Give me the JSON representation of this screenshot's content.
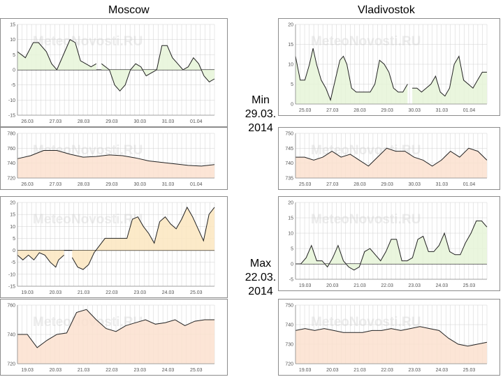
{
  "cities": {
    "left": "Moscow",
    "right": "Vladivostok"
  },
  "periods": {
    "min": {
      "label": "Min",
      "date": "29.03.",
      "year": "2014"
    },
    "max": {
      "label": "Max",
      "date": "22.03.",
      "year": "2014"
    }
  },
  "watermark": "MeteoNovosti.RU",
  "colors": {
    "temp_fill": "#e6f5d8",
    "temp_fill_warm": "#fbe6bf",
    "press_fill": "#fbe1cf",
    "line": "#222222",
    "grid": "#d0d0d0",
    "zero_line": "#000000"
  },
  "chart_data": [
    {
      "id": "moscow-min-temp",
      "type": "area",
      "city": "Moscow",
      "period": "Min",
      "variable": "temperature",
      "ylim": [
        -15,
        15
      ],
      "yticks": [
        "-15",
        "-10",
        "-5",
        "0",
        "5",
        "10",
        "15"
      ],
      "ytick_values": [
        -15,
        -10,
        -5,
        0,
        5,
        10,
        15
      ],
      "xticks": [
        "26.03",
        "27.03",
        "28.03",
        "29.03",
        "30.03",
        "31.03",
        "01.04"
      ],
      "xlim": [
        0,
        7
      ],
      "fill": "temp_fill",
      "series": [
        [
          [
            0,
            6
          ],
          [
            0.3,
            4
          ],
          [
            0.6,
            9
          ],
          [
            0.8,
            9
          ],
          [
            1.1,
            6
          ],
          [
            1.3,
            2
          ],
          [
            1.5,
            0
          ],
          [
            1.8,
            6
          ],
          [
            2.0,
            10
          ],
          [
            2.2,
            9
          ],
          [
            2.4,
            3
          ],
          [
            2.6,
            2
          ],
          [
            2.8,
            1
          ],
          [
            3.0,
            2
          ]
        ],
        [
          [
            3.2,
            2
          ],
          [
            3.5,
            0
          ],
          [
            3.7,
            -5
          ],
          [
            3.9,
            -7
          ],
          [
            4.1,
            -5
          ],
          [
            4.3,
            0
          ],
          [
            4.5,
            2
          ],
          [
            4.7,
            1
          ],
          [
            4.9,
            -2
          ],
          [
            5.1,
            -1
          ],
          [
            5.3,
            0
          ],
          [
            5.5,
            8
          ],
          [
            5.7,
            8
          ],
          [
            5.9,
            4
          ],
          [
            6.1,
            2
          ],
          [
            6.3,
            0
          ],
          [
            6.5,
            1
          ],
          [
            6.7,
            4
          ],
          [
            6.9,
            2
          ],
          [
            7.1,
            -2
          ],
          [
            7.3,
            -4
          ],
          [
            7.5,
            -3
          ]
        ]
      ]
    },
    {
      "id": "moscow-min-press",
      "type": "area",
      "city": "Moscow",
      "period": "Min",
      "variable": "pressure",
      "ylim": [
        720,
        780
      ],
      "yticks": [
        "720",
        "740",
        "760",
        "780"
      ],
      "ytick_values": [
        720,
        740,
        760,
        780
      ],
      "xticks": [
        "26.03",
        "27.03",
        "28.03",
        "29.03",
        "30.03",
        "31.03",
        "01.04"
      ],
      "xlim": [
        0,
        7
      ],
      "fill": "press_fill",
      "series": [
        [
          [
            0,
            746
          ],
          [
            0.5,
            750
          ],
          [
            1.0,
            757
          ],
          [
            1.5,
            757
          ],
          [
            2.0,
            752
          ],
          [
            2.5,
            748
          ],
          [
            3.0,
            749
          ],
          [
            3.5,
            751
          ],
          [
            4.0,
            750
          ],
          [
            4.5,
            747
          ],
          [
            5.0,
            743
          ],
          [
            5.5,
            741
          ],
          [
            6.0,
            739
          ],
          [
            6.5,
            737
          ],
          [
            7.0,
            736
          ],
          [
            7.5,
            738
          ]
        ]
      ]
    },
    {
      "id": "vlad-min-temp",
      "type": "area",
      "city": "Vladivostok",
      "period": "Min",
      "variable": "temperature",
      "ylim": [
        0,
        20
      ],
      "yticks": [
        "0",
        "5",
        "10",
        "15",
        "20"
      ],
      "ytick_values": [
        0,
        5,
        10,
        15,
        20
      ],
      "xticks": [
        "25.03",
        "27.03",
        "28.03",
        "29.03",
        "30.03",
        "31.03",
        "01.04"
      ],
      "xlim": [
        0,
        7
      ],
      "fill": "temp_fill",
      "series": [
        [
          [
            0,
            12
          ],
          [
            0.2,
            6
          ],
          [
            0.4,
            6
          ],
          [
            0.6,
            10
          ],
          [
            0.75,
            14
          ],
          [
            0.9,
            10
          ],
          [
            1.1,
            6
          ],
          [
            1.3,
            4
          ],
          [
            1.5,
            1
          ],
          [
            1.7,
            6
          ],
          [
            1.9,
            11
          ],
          [
            2.05,
            12
          ],
          [
            2.2,
            10
          ],
          [
            2.4,
            4
          ],
          [
            2.6,
            3
          ],
          [
            2.8,
            3
          ],
          [
            3.0,
            3
          ],
          [
            3.2,
            3
          ],
          [
            3.4,
            5
          ],
          [
            3.6,
            11
          ],
          [
            3.8,
            10
          ],
          [
            4.0,
            8
          ],
          [
            4.2,
            4
          ],
          [
            4.4,
            3
          ],
          [
            4.6,
            3
          ],
          [
            4.8,
            5
          ]
        ],
        [
          [
            5.0,
            4
          ],
          [
            5.2,
            4
          ],
          [
            5.4,
            3
          ],
          [
            5.6,
            4
          ],
          [
            5.8,
            5
          ],
          [
            6.0,
            7
          ],
          [
            6.2,
            3
          ],
          [
            6.4,
            2
          ],
          [
            6.6,
            4
          ],
          [
            6.8,
            10
          ],
          [
            7.0,
            12
          ],
          [
            7.2,
            6
          ],
          [
            7.4,
            5
          ],
          [
            7.6,
            4
          ],
          [
            7.8,
            6
          ],
          [
            8.0,
            8
          ],
          [
            8.2,
            8
          ]
        ]
      ]
    },
    {
      "id": "vlad-min-press",
      "type": "area",
      "city": "Vladivostok",
      "period": "Min",
      "variable": "pressure",
      "ylim": [
        735,
        750
      ],
      "yticks": [
        "735",
        "740",
        "745",
        "750"
      ],
      "ytick_values": [
        735,
        740,
        745,
        750
      ],
      "xticks": [
        "25.03",
        "27.03",
        "28.03",
        "29.03",
        "30.03",
        "31.03",
        "01.04"
      ],
      "xlim": [
        0,
        7
      ],
      "fill": "press_fill",
      "series": [
        [
          [
            0,
            742
          ],
          [
            0.5,
            742
          ],
          [
            1.0,
            741
          ],
          [
            1.5,
            742
          ],
          [
            2.0,
            744
          ],
          [
            2.5,
            742
          ],
          [
            3.0,
            743
          ],
          [
            3.5,
            741
          ],
          [
            4.0,
            739
          ],
          [
            4.5,
            742
          ],
          [
            5.0,
            745
          ],
          [
            5.5,
            744
          ],
          [
            6.0,
            744
          ],
          [
            6.5,
            742
          ],
          [
            7.0,
            741
          ],
          [
            7.5,
            739
          ],
          [
            8.0,
            741
          ],
          [
            8.5,
            744
          ],
          [
            9.0,
            742
          ],
          [
            9.5,
            745
          ],
          [
            10.0,
            744
          ],
          [
            10.5,
            741
          ]
        ]
      ]
    },
    {
      "id": "moscow-max-temp",
      "type": "area",
      "city": "Moscow",
      "period": "Max",
      "variable": "temperature",
      "ylim": [
        -15,
        20
      ],
      "yticks": [
        "-15",
        "-10",
        "-5",
        "0",
        "5",
        "10",
        "15",
        "20"
      ],
      "ytick_values": [
        -15,
        -10,
        -5,
        0,
        5,
        10,
        15,
        20
      ],
      "xticks": [
        "19.03",
        "20.03",
        "21.03",
        "22.03",
        "23.03",
        "24.03",
        "25.03"
      ],
      "xlim": [
        0,
        7
      ],
      "fill": "temp_fill_warm",
      "series": [
        [
          [
            0,
            -2
          ],
          [
            0.2,
            -4
          ],
          [
            0.4,
            -2
          ],
          [
            0.6,
            -4
          ],
          [
            0.8,
            -1
          ],
          [
            1.0,
            -2
          ],
          [
            1.2,
            -5
          ],
          [
            1.4,
            -7
          ],
          [
            1.5,
            -4
          ],
          [
            1.7,
            -2
          ]
        ],
        [
          [
            2.0,
            -3
          ],
          [
            2.2,
            -7
          ],
          [
            2.4,
            -8
          ],
          [
            2.6,
            -6
          ],
          [
            2.8,
            -1
          ],
          [
            3.0,
            2
          ],
          [
            3.2,
            5
          ],
          [
            3.4,
            5
          ],
          [
            3.6,
            5
          ],
          [
            3.8,
            5
          ],
          [
            4.0,
            5
          ],
          [
            4.2,
            13
          ],
          [
            4.4,
            14
          ],
          [
            4.6,
            10
          ],
          [
            4.8,
            7
          ],
          [
            5.0,
            3
          ],
          [
            5.2,
            12
          ],
          [
            5.4,
            14
          ],
          [
            5.6,
            11
          ],
          [
            5.8,
            9
          ],
          [
            6.0,
            13
          ],
          [
            6.2,
            18
          ],
          [
            6.4,
            14
          ],
          [
            6.6,
            9
          ],
          [
            6.8,
            4
          ],
          [
            7.0,
            15
          ],
          [
            7.2,
            18
          ]
        ]
      ]
    },
    {
      "id": "moscow-max-press",
      "type": "area",
      "city": "Moscow",
      "period": "Max",
      "variable": "pressure",
      "ylim": [
        720,
        760
      ],
      "yticks": [
        "720",
        "740",
        "760"
      ],
      "ytick_values": [
        720,
        740,
        760
      ],
      "xticks": [
        "19.03",
        "20.03",
        "21.03",
        "22.03",
        "23.03",
        "24.03",
        "25.03"
      ],
      "xlim": [
        0,
        7
      ],
      "fill": "press_fill",
      "series": [
        [
          [
            0,
            740
          ],
          [
            0.5,
            740
          ],
          [
            1.0,
            731
          ],
          [
            1.5,
            736
          ],
          [
            2.0,
            740
          ],
          [
            2.5,
            741
          ],
          [
            3.0,
            755
          ],
          [
            3.5,
            757
          ],
          [
            4.0,
            750
          ],
          [
            4.5,
            744
          ],
          [
            5.0,
            742
          ],
          [
            5.5,
            746
          ],
          [
            6.0,
            748
          ],
          [
            6.5,
            750
          ],
          [
            7.0,
            747
          ],
          [
            7.5,
            748
          ],
          [
            8.0,
            750
          ],
          [
            8.5,
            746
          ],
          [
            9.0,
            749
          ],
          [
            9.5,
            750
          ],
          [
            10.0,
            750
          ]
        ]
      ]
    },
    {
      "id": "vlad-max-temp",
      "type": "area",
      "city": "Vladivostok",
      "period": "Max",
      "variable": "temperature",
      "ylim": [
        -5,
        20
      ],
      "yticks": [
        "-5",
        "0",
        "5",
        "10",
        "15",
        "20"
      ],
      "ytick_values": [
        -5,
        0,
        5,
        10,
        15,
        20
      ],
      "xticks": [
        "19.03",
        "20.03",
        "21.03",
        "22.03",
        "23.03",
        "24.03",
        "25.03"
      ],
      "xlim": [
        0,
        7
      ],
      "fill": "temp_fill",
      "series": [
        [
          [
            0,
            0
          ],
          [
            0.2,
            0
          ],
          [
            0.4,
            2
          ],
          [
            0.6,
            6
          ],
          [
            0.8,
            1
          ],
          [
            1.0,
            1
          ],
          [
            1.2,
            -1
          ],
          [
            1.4,
            2
          ],
          [
            1.6,
            6
          ],
          [
            1.8,
            1
          ],
          [
            2.0,
            -1
          ],
          [
            2.2,
            -2
          ],
          [
            2.4,
            -1
          ],
          [
            2.6,
            4
          ],
          [
            2.8,
            5
          ],
          [
            3.0,
            3
          ],
          [
            3.2,
            1
          ],
          [
            3.4,
            4
          ],
          [
            3.6,
            8
          ],
          [
            3.8,
            8
          ],
          [
            4.0,
            1
          ],
          [
            4.2,
            1
          ],
          [
            4.4,
            2
          ],
          [
            4.6,
            8
          ],
          [
            4.8,
            9
          ],
          [
            5.0,
            4
          ],
          [
            5.2,
            4
          ],
          [
            5.4,
            6
          ],
          [
            5.6,
            10
          ],
          [
            5.8,
            4
          ],
          [
            6.0,
            3
          ],
          [
            6.2,
            3
          ],
          [
            6.4,
            7
          ],
          [
            6.6,
            10
          ],
          [
            6.8,
            14
          ],
          [
            7.0,
            14
          ],
          [
            7.2,
            12
          ]
        ]
      ]
    },
    {
      "id": "vlad-max-press",
      "type": "area",
      "city": "Vladivostok",
      "period": "Max",
      "variable": "pressure",
      "ylim": [
        720,
        750
      ],
      "yticks": [
        "720",
        "730",
        "740",
        "750"
      ],
      "ytick_values": [
        720,
        730,
        740,
        750
      ],
      "xticks": [
        "19.03",
        "20.03",
        "21.03",
        "22.03",
        "23.03",
        "24.03",
        "25.03"
      ],
      "xlim": [
        0,
        7
      ],
      "fill": "press_fill",
      "series": [
        [
          [
            0,
            737
          ],
          [
            0.5,
            738
          ],
          [
            1.0,
            737
          ],
          [
            1.5,
            738
          ],
          [
            2.0,
            737
          ],
          [
            2.5,
            736
          ],
          [
            3.0,
            736
          ],
          [
            3.5,
            736
          ],
          [
            4.0,
            737
          ],
          [
            4.5,
            737
          ],
          [
            5.0,
            738
          ],
          [
            5.5,
            737
          ],
          [
            6.0,
            738
          ],
          [
            6.5,
            739
          ],
          [
            7.0,
            738
          ],
          [
            7.5,
            737
          ],
          [
            8.0,
            733
          ],
          [
            8.5,
            730
          ],
          [
            9.0,
            729
          ],
          [
            9.5,
            730
          ],
          [
            10.0,
            731
          ]
        ]
      ]
    }
  ]
}
